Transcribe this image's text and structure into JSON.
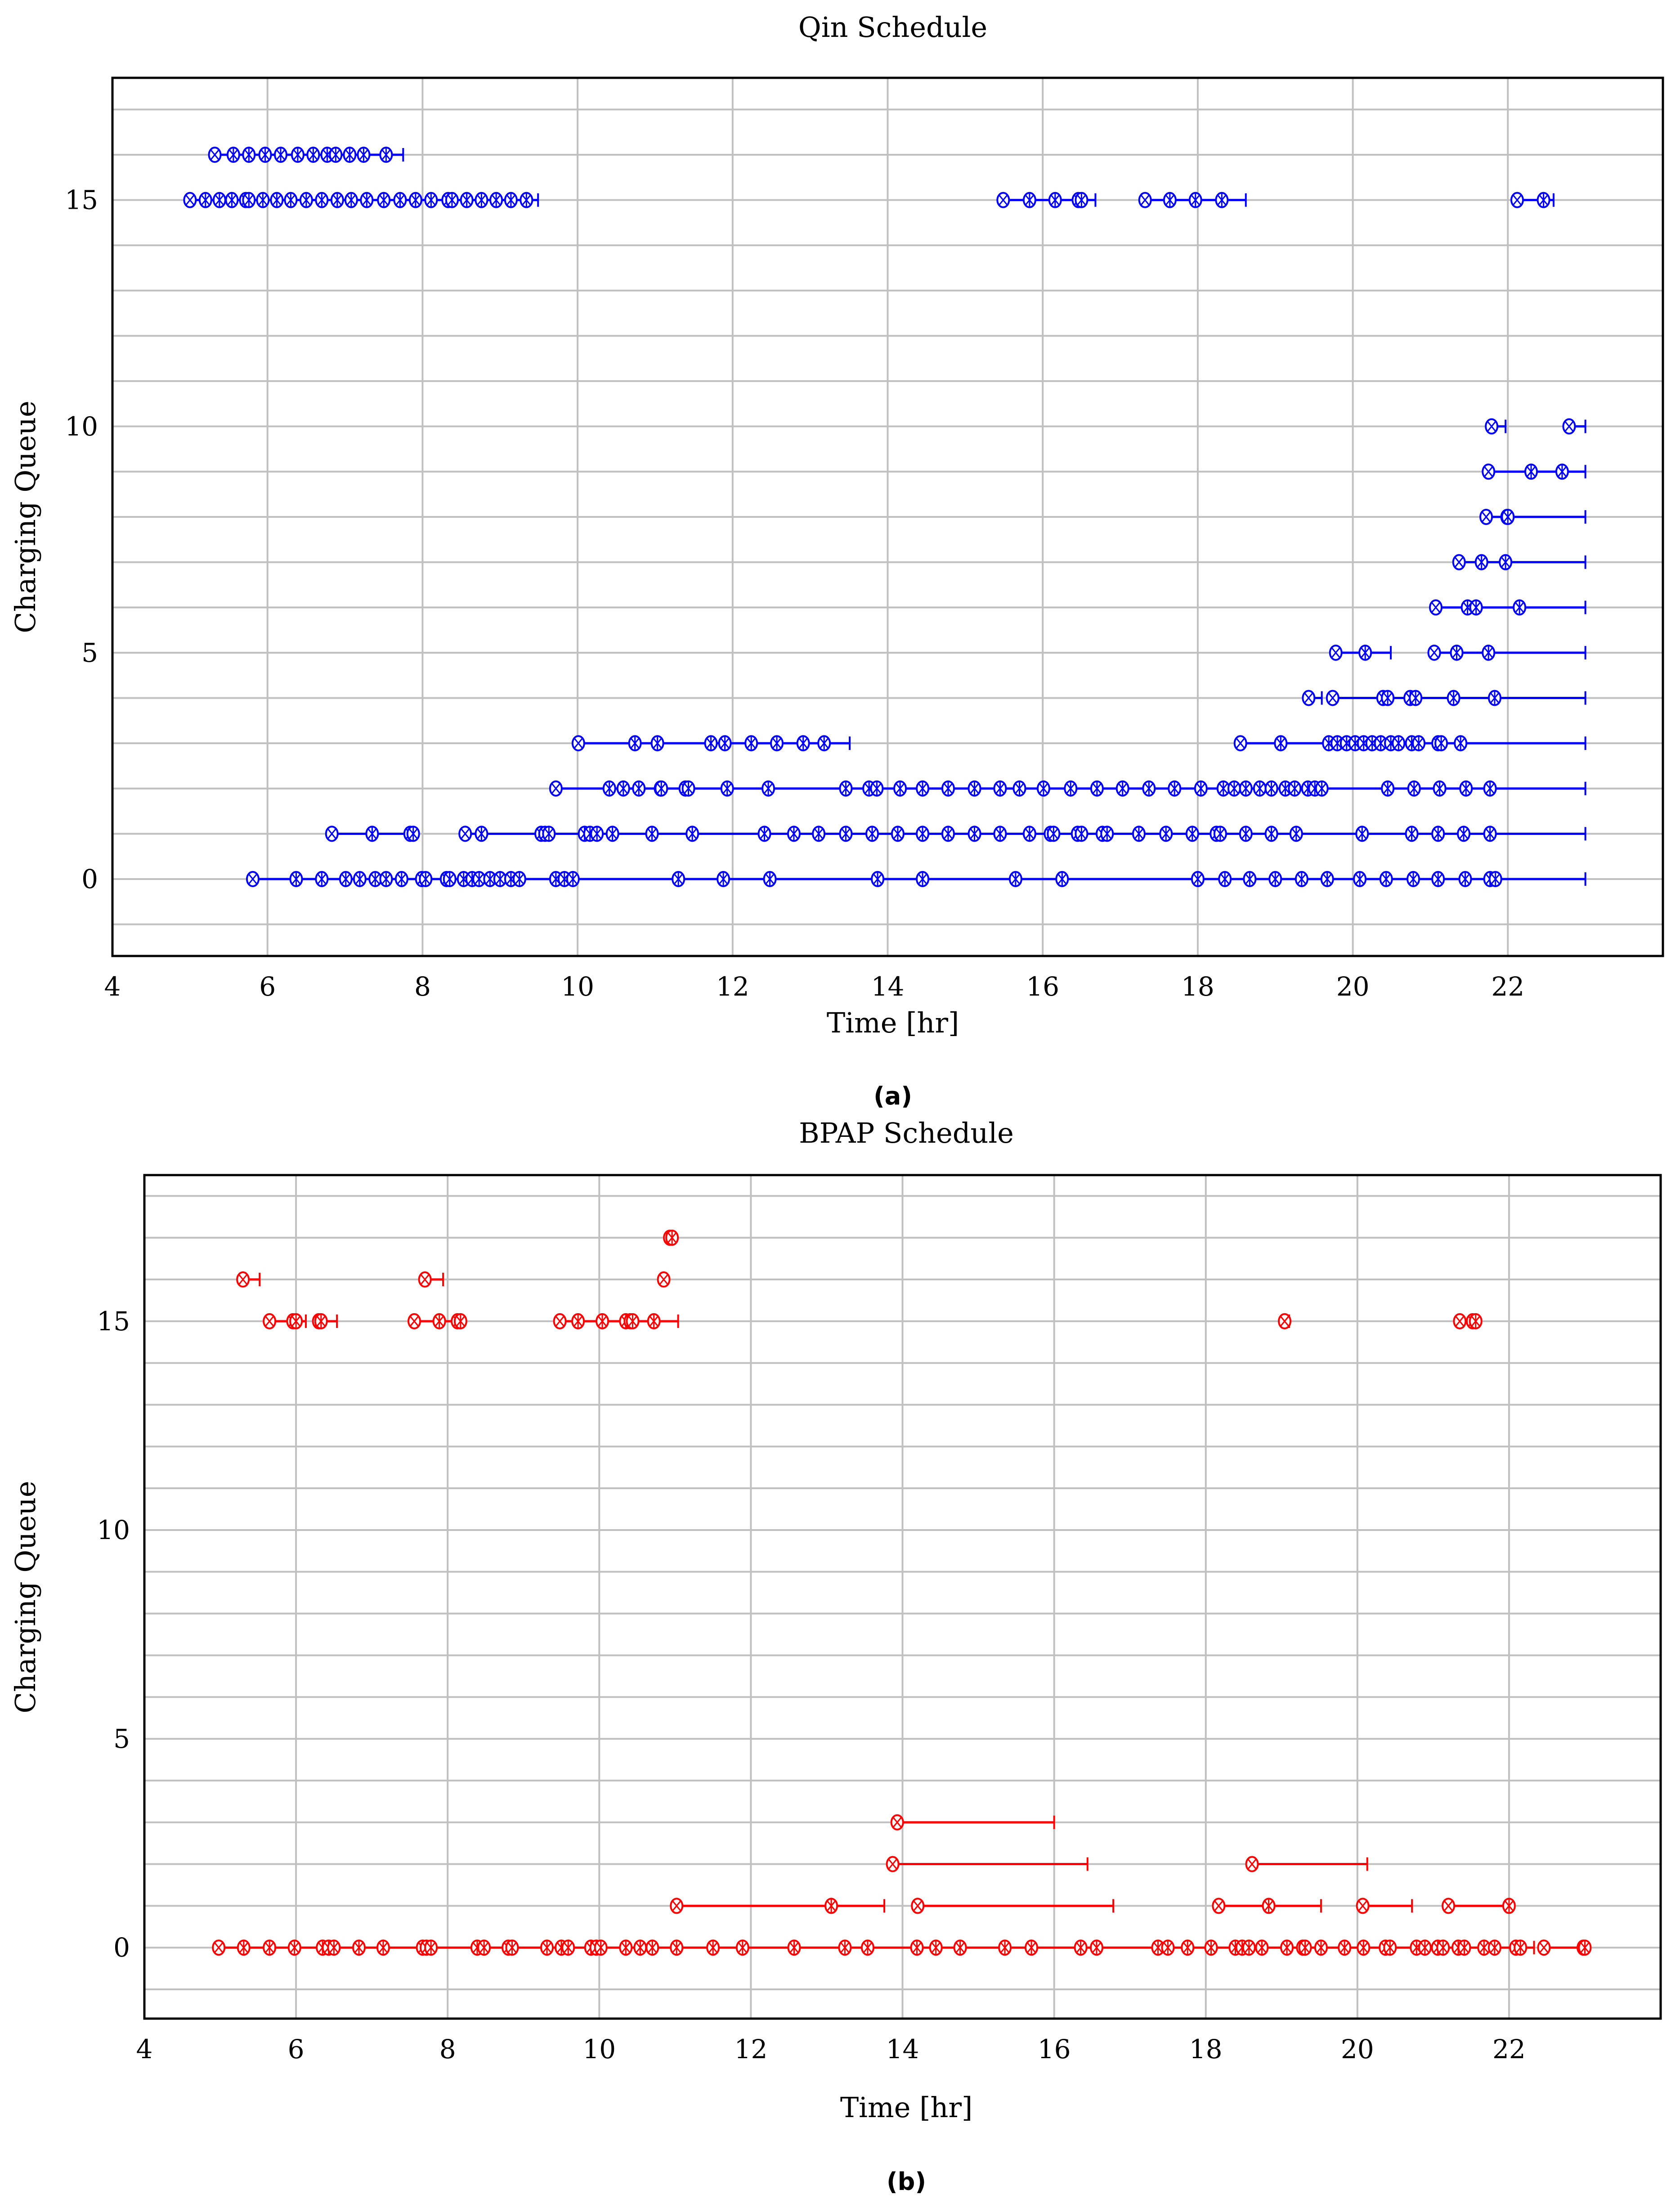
{
  "figure": {
    "captions": [
      "(a)",
      "(b)"
    ]
  },
  "chart_data": [
    {
      "type": "line",
      "title": "Qin Schedule",
      "xlabel": "Time [hr]",
      "ylabel": "Charging Queue",
      "xlim": [
        4,
        24
      ],
      "ylim": [
        -1.7,
        17.7
      ],
      "xticks": [
        4,
        6,
        8,
        10,
        12,
        14,
        16,
        18,
        20,
        22
      ],
      "yticks": [
        0,
        5,
        10,
        15
      ],
      "grid": "major x, every integer y",
      "color": "#0000ff",
      "rows": [
        {
          "queue": 0,
          "segments": [
            {
              "times": [
                5.81,
                6.37,
                6.7,
                7.01,
                7.19,
                7.39,
                7.53,
                7.73,
                7.99,
                8.04,
                8.31,
                8.35,
                8.53,
                8.64,
                8.73,
                8.87,
                9.0,
                9.14,
                9.25,
                9.72,
                9.83,
                9.94,
                11.3,
                11.88,
                12.48,
                13.87,
                14.45,
                15.65,
                16.25,
                18.0,
                18.35,
                18.67,
                19.0,
                19.34,
                19.67,
                20.09,
                20.43,
                20.78,
                21.1,
                21.45,
                21.77,
                21.84
              ],
              "end": 23.0
            }
          ]
        },
        {
          "queue": 1,
          "segments": [
            {
              "times": [
                6.83,
                7.35,
                7.84,
                7.88
              ],
              "end": 7.9
            },
            {
              "times": [
                8.55,
                8.76,
                9.53,
                9.58,
                9.63,
                10.09,
                10.16,
                10.25,
                10.45,
                10.96,
                11.48,
                12.41,
                12.79,
                13.11,
                13.46,
                13.8,
                14.13,
                14.45,
                14.78,
                15.12,
                15.45,
                15.83,
                16.1,
                16.14,
                16.45,
                16.5,
                16.77,
                16.83,
                17.24,
                17.59,
                17.93,
                18.24,
                18.29,
                18.62,
                18.95,
                19.27,
                20.12,
                20.76,
                21.1,
                21.43,
                21.77
              ],
              "end": 23.0
            }
          ]
        },
        {
          "queue": 2,
          "segments": [
            {
              "times": [
                9.72,
                10.41,
                10.59,
                10.79,
                11.07,
                11.08,
                11.39,
                11.43,
                11.93,
                12.46,
                13.46,
                13.76,
                13.86,
                14.16,
                14.45,
                14.78,
                15.12,
                15.45,
                15.7,
                16.01,
                16.36,
                16.7,
                17.03,
                17.37,
                17.7,
                18.04,
                18.33,
                18.47,
                18.62,
                18.8,
                18.95,
                19.13,
                19.25,
                19.42,
                19.51,
                19.6,
                20.45,
                20.79,
                21.12,
                21.46,
                21.77
              ],
              "end": 23.0
            }
          ]
        },
        {
          "queue": 3,
          "segments": [
            {
              "times": [
                10.01,
                10.74,
                11.03,
                11.72,
                11.9,
                12.24,
                12.57,
                12.91,
                13.18
              ],
              "end": 13.51
            },
            {
              "times": [
                18.55,
                19.07,
                19.69,
                19.8,
                19.92,
                20.03,
                20.14,
                20.25,
                20.36,
                20.49,
                20.59,
                20.76,
                20.85,
                21.1,
                21.14,
                21.39
              ],
              "end": 23.0
            }
          ]
        },
        {
          "queue": 4,
          "segments": [
            {
              "times": [
                19.43
              ],
              "end": 19.6
            },
            {
              "times": [
                19.74,
                20.39,
                20.45,
                20.74,
                20.81,
                21.3,
                21.83
              ],
              "end": 23.0
            }
          ]
        },
        {
          "queue": 5,
          "segments": [
            {
              "times": [
                19.78,
                20.16
              ],
              "end": 20.49
            },
            {
              "times": [
                21.05,
                21.34,
                21.75
              ],
              "end": 23.0
            }
          ]
        },
        {
          "queue": 6,
          "segments": [
            {
              "times": [
                21.07,
                21.48,
                21.59,
                22.15
              ],
              "end": 23.0
            }
          ]
        },
        {
          "queue": 7,
          "segments": [
            {
              "times": [
                21.37,
                21.66,
                21.97
              ],
              "end": 23.0
            }
          ]
        },
        {
          "queue": 8,
          "segments": [
            {
              "times": [
                21.72,
                21.99,
                22.0
              ],
              "end": 23.0
            }
          ]
        },
        {
          "queue": 9,
          "segments": [
            {
              "times": [
                21.75,
                22.3,
                22.7
              ],
              "end": 23.0
            }
          ]
        },
        {
          "queue": 10,
          "segments": [
            {
              "times": [
                21.79
              ],
              "end": 21.97
            },
            {
              "times": [
                22.79
              ],
              "end": 23.0
            }
          ]
        },
        {
          "queue": 15,
          "segments": [
            {
              "times": [
                5.0,
                5.2,
                5.38,
                5.54,
                5.72,
                5.76,
                5.94,
                6.12,
                6.3,
                6.5,
                6.7,
                6.9,
                7.08,
                7.28,
                7.5,
                7.71,
                7.91,
                8.11,
                8.33,
                8.38,
                8.57,
                8.76,
                8.95,
                9.14,
                9.34
              ],
              "end": 9.49
            },
            {
              "times": [
                15.49,
                15.83,
                16.16,
                16.46,
                16.5
              ],
              "end": 16.68
            },
            {
              "times": [
                17.32,
                17.64,
                17.97,
                18.31
              ],
              "end": 18.62
            },
            {
              "times": [
                22.12,
                22.46
              ],
              "end": 22.59
            }
          ]
        },
        {
          "queue": 16,
          "segments": [
            {
              "times": [
                5.32,
                5.56,
                5.76,
                5.97,
                6.17,
                6.39,
                6.59,
                6.77,
                6.88,
                7.06,
                7.24,
                7.53
              ],
              "end": 7.75
            }
          ]
        }
      ]
    },
    {
      "type": "line",
      "title": "BPAP Schedule",
      "xlabel": "Time [hr]",
      "ylabel": "Charging Queue",
      "xlim": [
        4,
        24
      ],
      "ylim": [
        -1.7,
        18.5
      ],
      "xticks": [
        4,
        6,
        8,
        10,
        12,
        14,
        16,
        18,
        20,
        22
      ],
      "yticks": [
        0,
        5,
        10,
        15
      ],
      "grid": "major x, every integer y",
      "color": "#ff0000",
      "rows": [
        {
          "queue": 0,
          "segments": [
            {
              "times": [
                4.98,
                5.31,
                5.65,
                5.98,
                6.35,
                6.43,
                6.5,
                6.83,
                7.15,
                7.67,
                7.72,
                7.78,
                8.39,
                8.48,
                8.8,
                8.85,
                9.31,
                9.5,
                9.59,
                9.89,
                9.96,
                10.02,
                10.35,
                10.54,
                10.7,
                11.02,
                11.5,
                11.89,
                12.57,
                13.24,
                13.54,
                14.19,
                14.44,
                14.76,
                15.35,
                15.7,
                16.35,
                16.56,
                17.37,
                17.5,
                17.76,
                18.07,
                18.39,
                18.48,
                18.57,
                18.74,
                19.07,
                19.28,
                19.31,
                19.52,
                19.83,
                20.08,
                20.37,
                20.43,
                20.78,
                20.89,
                21.06,
                21.13,
                21.33,
                21.41,
                21.67,
                21.81,
                22.09,
                22.15
              ],
              "end": 22.33
            },
            {
              "times": [
                22.46,
                22.98,
                23.0
              ]
            }
          ]
        },
        {
          "queue": 1,
          "segments": [
            {
              "times": [
                11.02,
                13.06
              ],
              "end": 13.76
            },
            {
              "times": [
                14.2
              ],
              "end": 16.78
            },
            {
              "times": [
                18.17,
                18.83
              ],
              "end": 19.52
            },
            {
              "times": [
                20.07
              ],
              "end": 20.72
            },
            {
              "times": [
                21.2,
                22.0
              ]
            }
          ]
        },
        {
          "queue": 2,
          "segments": [
            {
              "times": [
                13.87
              ],
              "end": 16.44
            },
            {
              "times": [
                18.61
              ],
              "end": 20.13
            }
          ]
        },
        {
          "queue": 3,
          "segments": [
            {
              "times": [
                13.93
              ],
              "end": 16.0
            }
          ]
        },
        {
          "queue": 15,
          "segments": [
            {
              "times": [
                5.65,
                5.96,
                6.0
              ],
              "end": 6.13
            },
            {
              "times": [
                6.3,
                6.33
              ],
              "end": 6.54
            },
            {
              "times": [
                7.56,
                7.89,
                8.13,
                8.17
              ],
              "end": 8.2
            },
            {
              "times": [
                9.48,
                9.72,
                10.04,
                10.35,
                10.41,
                10.44,
                10.72
              ],
              "end": 11.04
            },
            {
              "times": [
                19.04
              ],
              "end": 19.1
            },
            {
              "times": [
                21.35,
                21.52,
                21.56
              ],
              "end": 21.6
            }
          ]
        },
        {
          "queue": 16,
          "segments": [
            {
              "times": [
                5.3
              ],
              "end": 5.52
            },
            {
              "times": [
                7.7
              ],
              "end": 7.94
            },
            {
              "times": [
                10.85
              ]
            }
          ]
        },
        {
          "queue": 17,
          "segments": [
            {
              "times": [
                10.93,
                10.96
              ],
              "end": 11.0
            }
          ]
        }
      ]
    }
  ]
}
